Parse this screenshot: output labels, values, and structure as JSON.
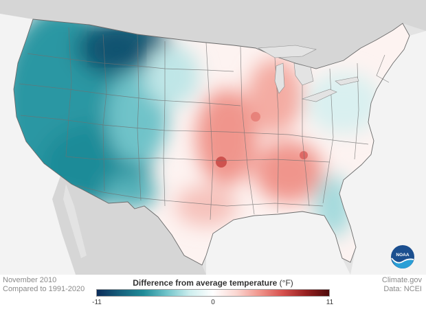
{
  "map": {
    "period": "November 2010",
    "baseline": "Compared to 1991-2020",
    "source_site": "Climate.gov",
    "source_data": "Data: NCEI",
    "logo_text": "NOAA"
  },
  "legend": {
    "title": "Difference from average temperature",
    "unit": "(°F)",
    "min_label": "-11",
    "mid_label": "0",
    "max_label": "11",
    "min": -11,
    "max": 11,
    "colors": [
      "#0b2c5a",
      "#16607c",
      "#1f8b98",
      "#6fc3c9",
      "#cdeeee",
      "#ffffff",
      "#fbd7d2",
      "#f0958c",
      "#d6504d",
      "#962020",
      "#4d0a0a"
    ]
  }
}
